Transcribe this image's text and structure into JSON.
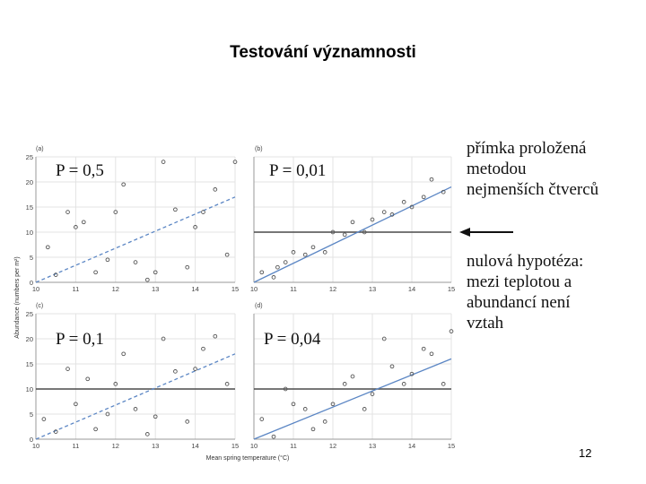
{
  "slide": {
    "title": "Testování významnosti",
    "page_number": "12",
    "note_regression": [
      "přímka proložená",
      "metodou",
      "nejmenších čtverců"
    ],
    "note_null": [
      "nulová hypotéza:",
      "mezi teplotou a",
      "abundancí není",
      "vztah"
    ]
  },
  "chart_data": [
    {
      "type": "scatter",
      "panel": "(a)",
      "annotation": "P = 0,5",
      "xlim": [
        10,
        15
      ],
      "ylim": [
        0,
        25
      ],
      "x_ticks": [
        10,
        11,
        12,
        13,
        14,
        15
      ],
      "y_ticks": [
        0,
        5,
        10,
        15,
        20,
        25
      ],
      "points": [
        [
          10.3,
          7
        ],
        [
          10.5,
          1.5
        ],
        [
          10.8,
          14
        ],
        [
          11.0,
          11
        ],
        [
          11.2,
          12
        ],
        [
          11.5,
          2
        ],
        [
          11.8,
          4.5
        ],
        [
          12.0,
          14
        ],
        [
          12.2,
          19.5
        ],
        [
          12.5,
          4
        ],
        [
          12.8,
          0.5
        ],
        [
          13.0,
          2
        ],
        [
          13.2,
          24
        ],
        [
          13.5,
          14.5
        ],
        [
          13.8,
          3
        ],
        [
          14.0,
          11
        ],
        [
          14.2,
          14
        ],
        [
          14.5,
          18.5
        ],
        [
          14.8,
          5.5
        ],
        [
          15.0,
          24
        ]
      ],
      "fit_line": [
        [
          10,
          0
        ],
        [
          15,
          17
        ]
      ],
      "fit_style": "dashed",
      "null_line": null
    },
    {
      "type": "scatter",
      "panel": "(b)",
      "annotation": "P = 0,01",
      "xlim": [
        10,
        15
      ],
      "ylim": [
        0,
        25
      ],
      "x_ticks": [
        10,
        11,
        12,
        13,
        14,
        15
      ],
      "y_ticks": [
        0,
        5,
        10,
        15,
        20,
        25
      ],
      "points": [
        [
          10.2,
          2
        ],
        [
          10.5,
          1
        ],
        [
          10.6,
          3
        ],
        [
          10.8,
          4
        ],
        [
          11.0,
          6
        ],
        [
          11.3,
          5.5
        ],
        [
          11.5,
          7
        ],
        [
          11.8,
          6
        ],
        [
          12.0,
          10
        ],
        [
          12.3,
          9.5
        ],
        [
          12.5,
          12
        ],
        [
          12.8,
          10
        ],
        [
          13.0,
          12.5
        ],
        [
          13.3,
          14
        ],
        [
          13.5,
          13.5
        ],
        [
          13.8,
          16
        ],
        [
          14.0,
          15
        ],
        [
          14.3,
          17
        ],
        [
          14.5,
          20.5
        ],
        [
          14.8,
          18
        ]
      ],
      "fit_line": [
        [
          10,
          0
        ],
        [
          15,
          19
        ]
      ],
      "fit_style": "solid",
      "null_line": 10
    },
    {
      "type": "scatter",
      "panel": "(c)",
      "annotation": "P = 0,1",
      "xlim": [
        10,
        15
      ],
      "ylim": [
        0,
        25
      ],
      "x_ticks": [
        10,
        11,
        12,
        13,
        14,
        15
      ],
      "y_ticks": [
        0,
        5,
        10,
        15,
        20,
        25
      ],
      "points": [
        [
          10.2,
          4
        ],
        [
          10.5,
          1.5
        ],
        [
          10.8,
          14
        ],
        [
          11.0,
          7
        ],
        [
          11.3,
          12
        ],
        [
          11.5,
          2
        ],
        [
          11.8,
          5
        ],
        [
          12.0,
          11
        ],
        [
          12.2,
          17
        ],
        [
          12.5,
          6
        ],
        [
          12.8,
          1
        ],
        [
          13.0,
          4.5
        ],
        [
          13.2,
          20
        ],
        [
          13.5,
          13.5
        ],
        [
          13.8,
          3.5
        ],
        [
          14.0,
          14
        ],
        [
          14.2,
          18
        ],
        [
          14.5,
          20.5
        ],
        [
          14.8,
          11
        ]
      ],
      "fit_line": [
        [
          10,
          0
        ],
        [
          15,
          17
        ]
      ],
      "fit_style": "dashed",
      "null_line": 10
    },
    {
      "type": "scatter",
      "panel": "(d)",
      "annotation": "P = 0,04",
      "xlim": [
        10,
        15
      ],
      "ylim": [
        0,
        25
      ],
      "x_ticks": [
        10,
        11,
        12,
        13,
        14,
        15
      ],
      "y_ticks": [
        0,
        5,
        10,
        15,
        20,
        25
      ],
      "points": [
        [
          10.2,
          4
        ],
        [
          10.5,
          0.5
        ],
        [
          10.8,
          10
        ],
        [
          11.0,
          7
        ],
        [
          11.3,
          6
        ],
        [
          11.5,
          2
        ],
        [
          11.8,
          3.5
        ],
        [
          12.0,
          7
        ],
        [
          12.3,
          11
        ],
        [
          12.5,
          12.5
        ],
        [
          12.8,
          6
        ],
        [
          13.0,
          9
        ],
        [
          13.3,
          20
        ],
        [
          13.5,
          14.5
        ],
        [
          13.8,
          11
        ],
        [
          14.0,
          13
        ],
        [
          14.3,
          18
        ],
        [
          14.5,
          17
        ],
        [
          14.8,
          11
        ],
        [
          15.0,
          21.5
        ]
      ],
      "fit_line": [
        [
          10,
          0
        ],
        [
          15,
          16
        ]
      ],
      "fit_style": "solid",
      "null_line": 10
    }
  ],
  "axes": {
    "xlabel": "Mean spring temperature (°C)",
    "ylabel": "Abundance (numbers per m²)"
  },
  "colors": {
    "fit_line": "#5b86c4",
    "null_line": "#4a4a4a",
    "grid": "#e3e3e3",
    "point": "#555555",
    "arrow": "#111111"
  }
}
